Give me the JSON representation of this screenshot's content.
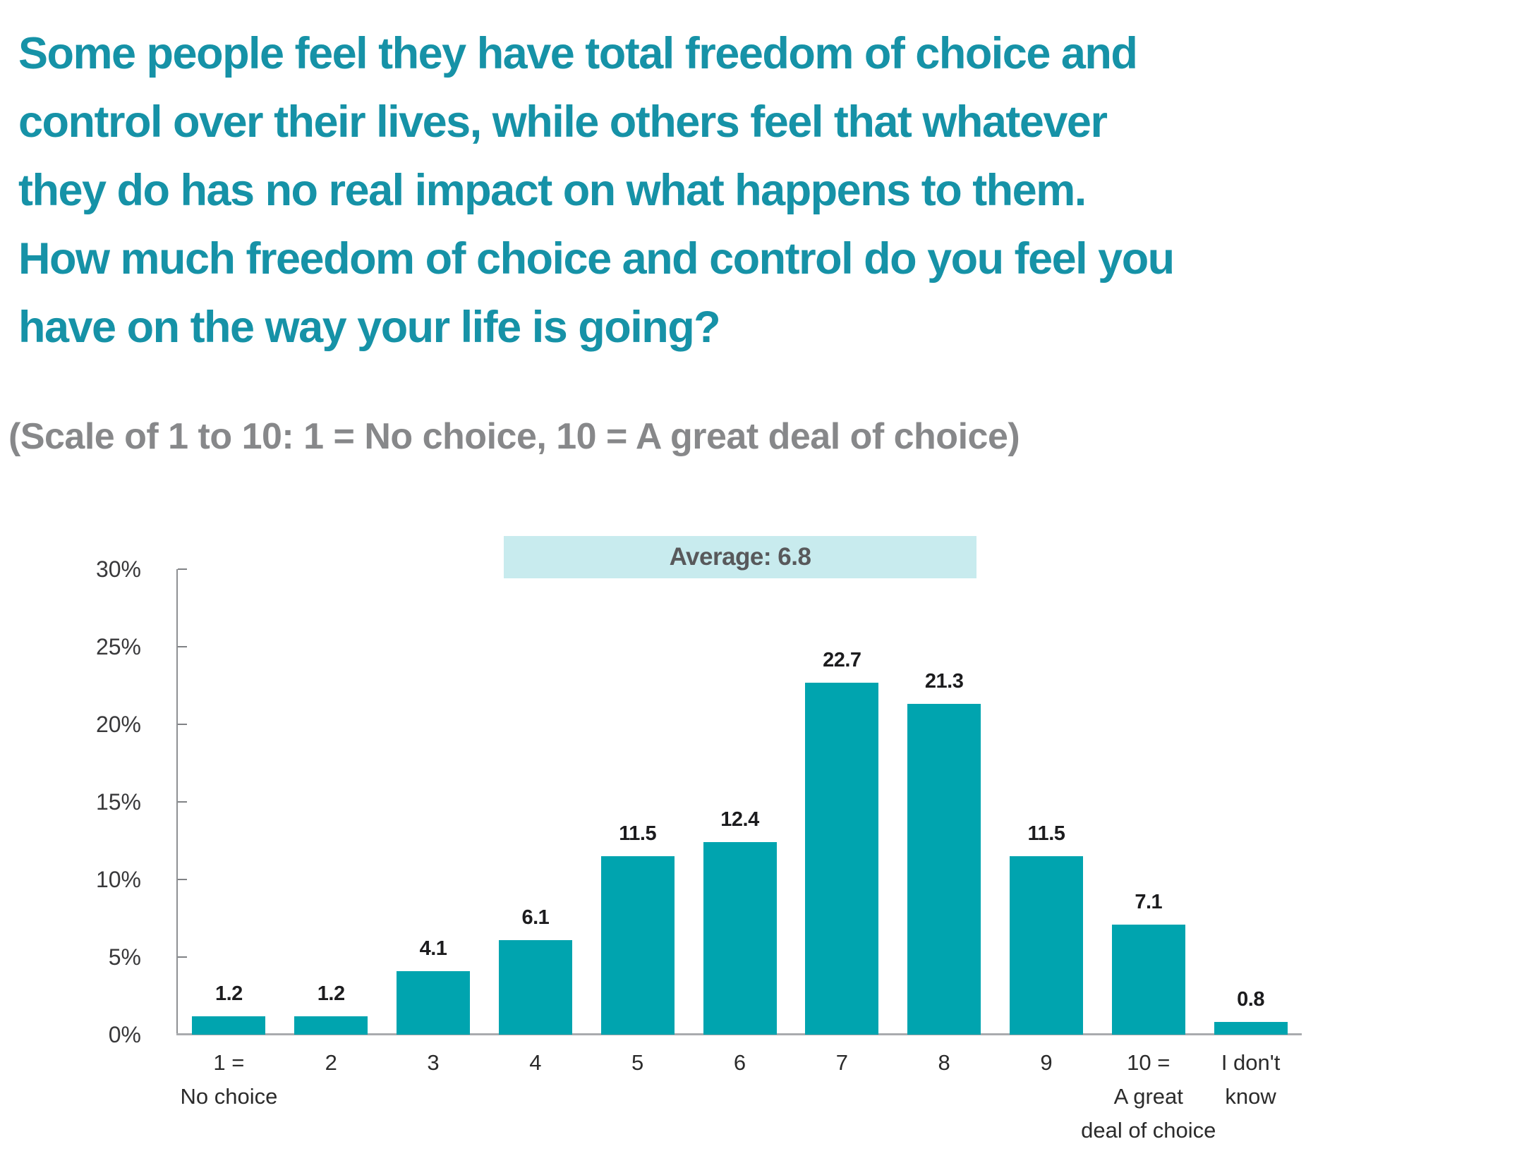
{
  "title": {
    "text": "Some people feel they have total freedom of choice and\ncontrol over their lives, while others feel that whatever\nthey do has no real impact on what happens to them.\nHow much freedom of choice and control do you feel you\nhave on the way your life is going?",
    "color": "#1692A7"
  },
  "subtitle": {
    "text": "(Scale of 1 to 10: 1 = No choice, 10 = A great deal of choice)",
    "color": "#87888A"
  },
  "chart_data": {
    "type": "bar",
    "categories": [
      "1 =\nNo choice",
      "2",
      "3",
      "4",
      "5",
      "6",
      "7",
      "8",
      "9",
      "10 =\nA great\ndeal of choice",
      "I don't\nknow"
    ],
    "values": [
      1.2,
      1.2,
      4.1,
      6.1,
      11.5,
      12.4,
      22.7,
      21.3,
      11.5,
      7.1,
      0.8
    ],
    "annotation": {
      "label": "Average: 6.8",
      "bg_color": "#C8EBEE",
      "text_color": "#58595B"
    },
    "title": "",
    "xlabel": "",
    "ylabel": "",
    "ylim": [
      0,
      30
    ],
    "ytick_values": [
      0,
      5,
      10,
      15,
      20,
      25,
      30
    ],
    "ytick_labels": [
      "0%",
      "5%",
      "10%",
      "15%",
      "20%",
      "25%",
      "30%"
    ],
    "grid": false,
    "legend": null,
    "bar_color": "#00A4AF",
    "value_label_color": "#1C1C1E"
  }
}
